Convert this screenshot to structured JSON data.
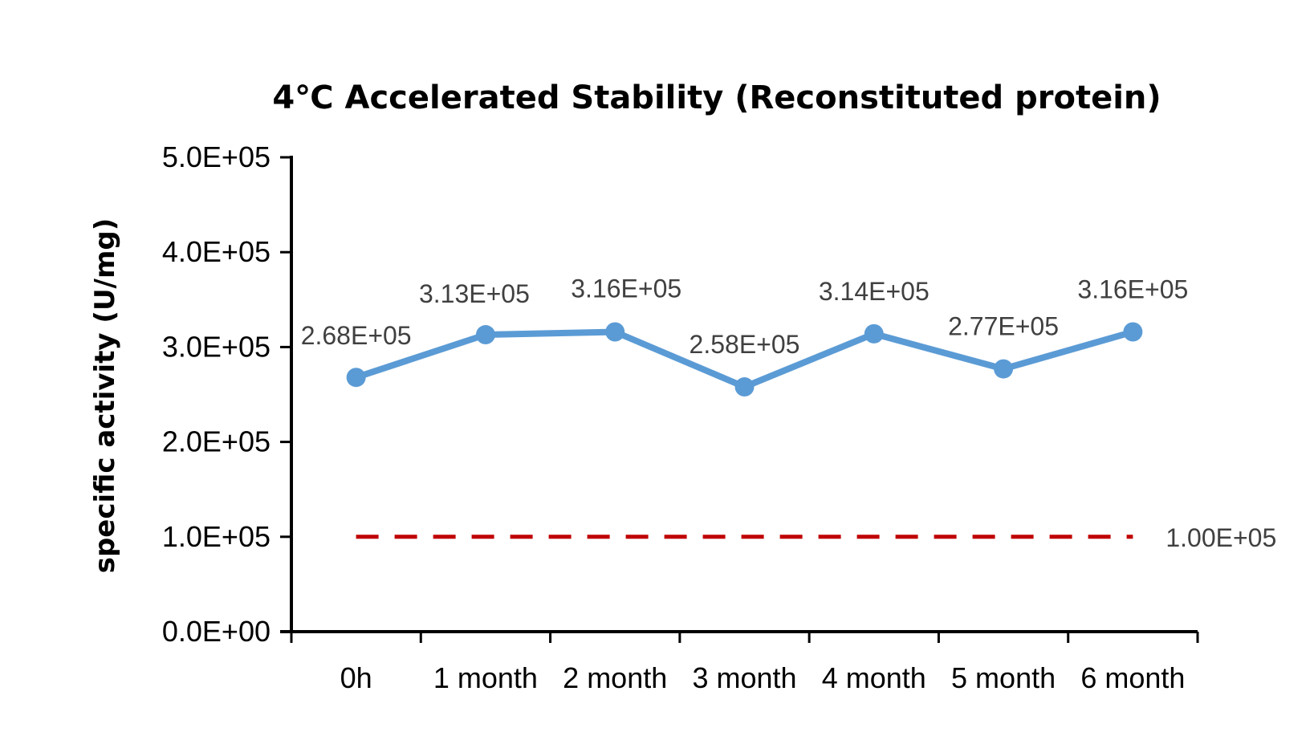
{
  "chart_data": {
    "type": "line",
    "title": "4℃ Accelerated Stability (Reconstituted protein)",
    "xlabel": "",
    "ylabel": "specific activity (U/mg)",
    "categories": [
      "0h",
      "1 month",
      "2 month",
      "3 month",
      "4 month",
      "5 month",
      "6 month"
    ],
    "ylim": [
      0,
      500000
    ],
    "yticks": [
      0,
      100000,
      200000,
      300000,
      400000,
      500000
    ],
    "ytick_labels": [
      "0.0E+00",
      "1.0E+05",
      "2.0E+05",
      "3.0E+05",
      "4.0E+05",
      "5.0E+05"
    ],
    "grid": false,
    "legend": "none",
    "series": [
      {
        "values": [
          268000,
          313000,
          316000,
          258000,
          314000,
          277000,
          316000
        ],
        "labels": [
          "2.68E+05",
          "3.13E+05",
          "3.16E+05",
          "2.58E+05",
          "3.14E+05",
          "2.77E+05",
          "3.16E+05"
        ],
        "color": "#5b9bd5",
        "style": "solid",
        "markers": true
      },
      {
        "values": [
          100000,
          100000,
          100000,
          100000,
          100000,
          100000,
          100000
        ],
        "end_label": "1.00E+05",
        "color": "#c00000",
        "style": "dashed",
        "markers": false
      }
    ]
  }
}
